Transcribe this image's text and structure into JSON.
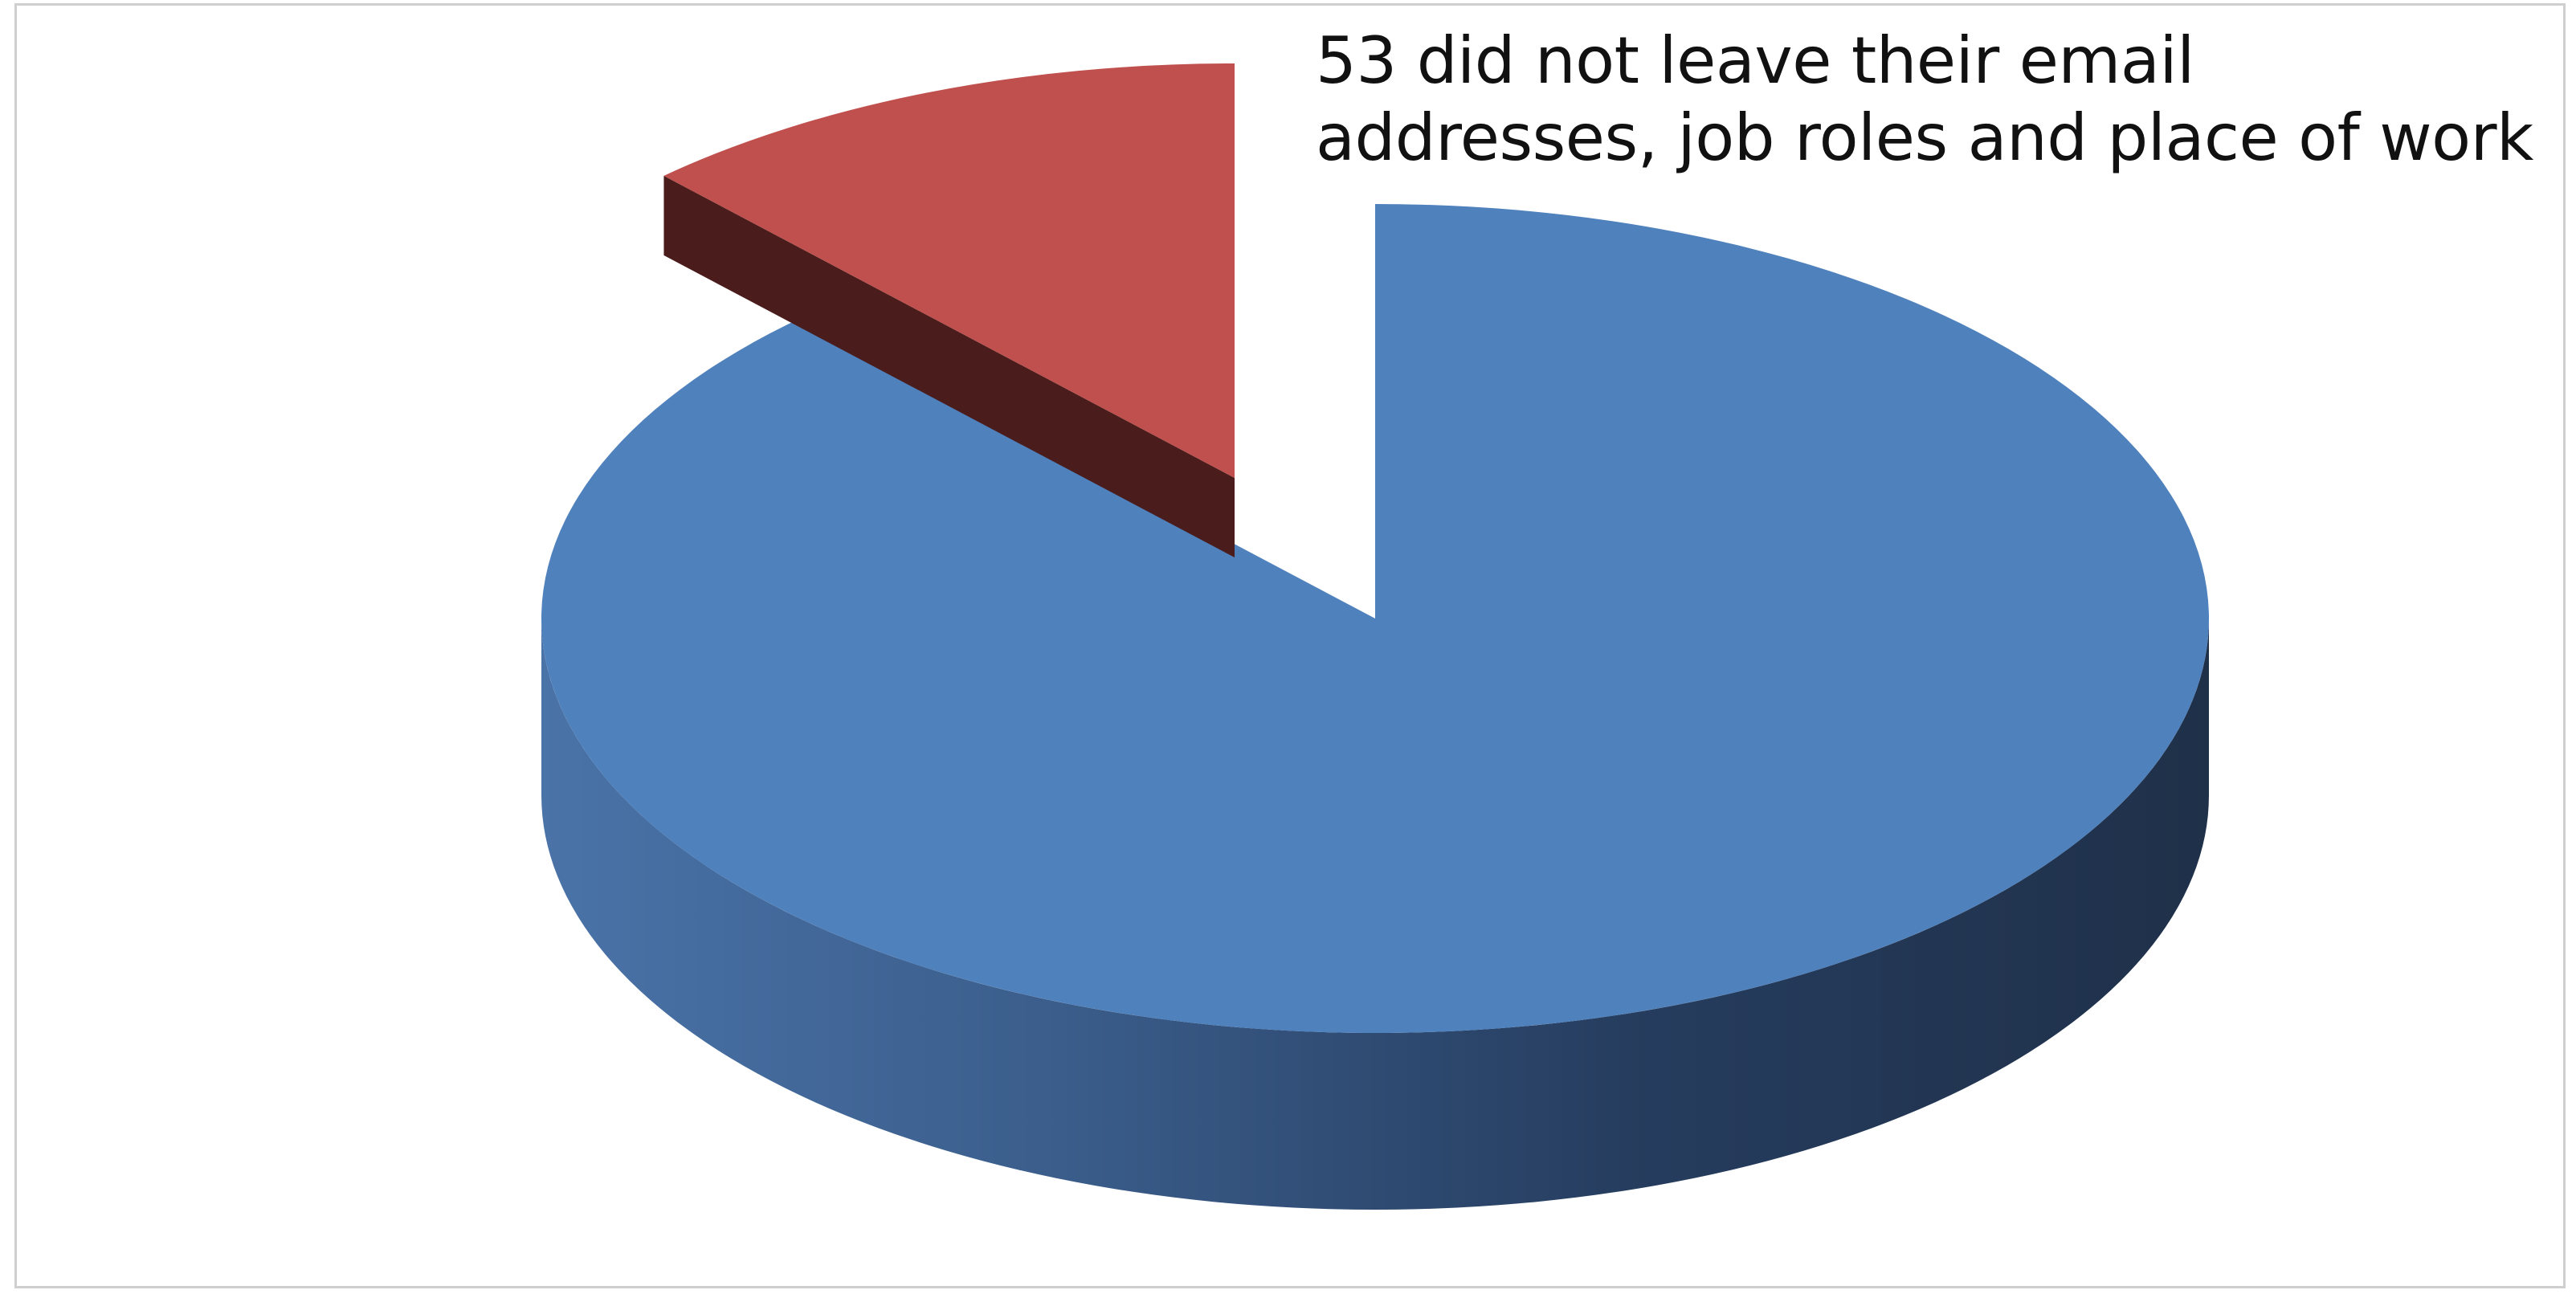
{
  "chart_data": {
    "type": "pie",
    "style": "3d-exploded",
    "title": "",
    "slices": [
      {
        "label": "53 did not leave their email addresses, job roles and place of work",
        "value": 53,
        "share": 0.12,
        "color": "#c0504d",
        "side_color": "#4a1c1c",
        "exploded": true
      },
      {
        "label": "",
        "share": 0.88,
        "color": "#4f81bd",
        "side_color_light": "#4a73a8",
        "side_color_dark": "#1f3049",
        "exploded": false
      }
    ],
    "legend": "none",
    "background": "#ffffff",
    "border_color": "#cfcfcf"
  }
}
